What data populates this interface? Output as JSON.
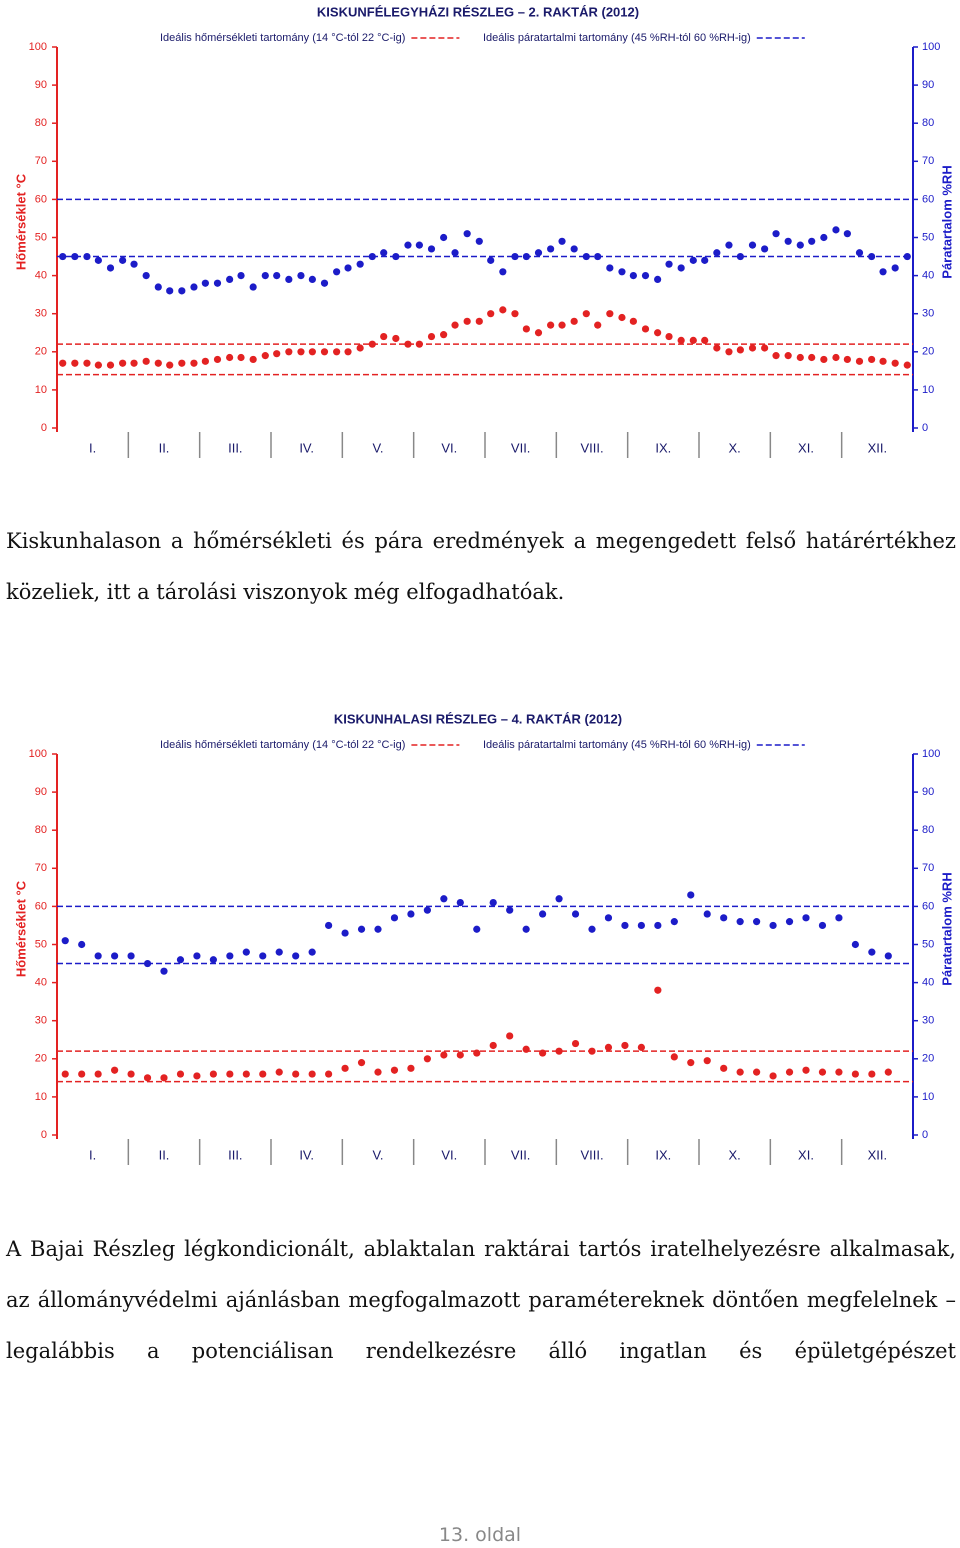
{
  "chart_data": [
    {
      "type": "scatter",
      "title": "KISKUNFÉLEGYHÁZI RÉSZLEG – 2. RAKTÁR (2012)",
      "y_label": "Hőmérséklet °C",
      "y2_label": "Páratartalom %RH",
      "categories": [
        "I.",
        "II.",
        "III.",
        "IV.",
        "V.",
        "VI.",
        "VII.",
        "VIII.",
        "IX.",
        "X.",
        "XI.",
        "XII."
      ],
      "xlim": [
        0,
        12
      ],
      "x": [
        0.08,
        0.25,
        0.42,
        0.58,
        0.75,
        0.92,
        1.08,
        1.25,
        1.42,
        1.58,
        1.75,
        1.92,
        2.08,
        2.25,
        2.42,
        2.58,
        2.75,
        2.92,
        3.08,
        3.25,
        3.42,
        3.58,
        3.75,
        3.92,
        4.08,
        4.25,
        4.42,
        4.58,
        4.75,
        4.92,
        5.08,
        5.25,
        5.42,
        5.58,
        5.75,
        5.92,
        6.08,
        6.25,
        6.42,
        6.58,
        6.75,
        6.92,
        7.08,
        7.25,
        7.42,
        7.58,
        7.75,
        7.92,
        8.08,
        8.25,
        8.42,
        8.58,
        8.75,
        8.92,
        9.08,
        9.25,
        9.42,
        9.58,
        9.75,
        9.92,
        10.08,
        10.25,
        10.42,
        10.58,
        10.75,
        10.92,
        11.08,
        11.25,
        11.42,
        11.58,
        11.75,
        11.92
      ],
      "series": [
        {
          "color": "#e32222",
          "axis": "y",
          "values": [
            17,
            17,
            17,
            16.5,
            16.5,
            17,
            17,
            17.5,
            17,
            16.5,
            17,
            17,
            17.5,
            18,
            18.5,
            18.5,
            18,
            19,
            19.5,
            20,
            20,
            20,
            20,
            20,
            20,
            21,
            22,
            24,
            23.5,
            22,
            22,
            24,
            24.5,
            27,
            28,
            28,
            30,
            31,
            30,
            26,
            25,
            27,
            27,
            28,
            30,
            27,
            30,
            29,
            28,
            26,
            25,
            24,
            23,
            23,
            23,
            21,
            20,
            20.5,
            21,
            21,
            19,
            19,
            18.5,
            18.5,
            18,
            18.5,
            18,
            17.5,
            18,
            17.5,
            17,
            16.5
          ]
        },
        {
          "color": "#1c1cc8",
          "axis": "y2",
          "values": [
            45,
            45,
            45,
            44,
            42,
            44,
            43,
            40,
            37,
            36,
            36,
            37,
            38,
            38,
            39,
            40,
            37,
            40,
            40,
            39,
            40,
            39,
            38,
            41,
            42,
            43,
            45,
            46,
            45,
            48,
            48,
            47,
            50,
            46,
            51,
            49,
            44,
            41,
            45,
            45,
            46,
            47,
            49,
            47,
            45,
            45,
            42,
            41,
            40,
            40,
            39,
            43,
            42,
            44,
            44,
            46,
            48,
            45,
            48,
            47,
            51,
            49,
            48,
            49,
            50,
            52,
            51,
            46,
            45,
            41,
            42,
            45
          ]
        }
      ],
      "ranges": [
        {
          "name": "Ideális hőmérsékleti tartomány (14 °C-tól 22 °C-ig)",
          "color": "#e32222",
          "axis": "y",
          "values": [
            14,
            22
          ]
        },
        {
          "name": "Ideális páratartalmi tartomány (45 %RH-tól 60 %RH-ig)",
          "color": "#1c1cc8",
          "axis": "y2",
          "values": [
            45,
            60
          ]
        }
      ],
      "ylim": [
        0,
        100
      ],
      "yticks": [
        0,
        10,
        20,
        30,
        40,
        50,
        60,
        70,
        80,
        90,
        100
      ],
      "y2lim": [
        0,
        100
      ],
      "y2ticks": [
        0,
        10,
        20,
        30,
        40,
        50,
        60,
        70,
        80,
        90,
        100
      ]
    },
    {
      "type": "scatter",
      "title": "KISKUNHALASI RÉSZLEG – 4. RAKTÁR (2012)",
      "y_label": "Hőmérséklet °C",
      "y2_label": "Páratartalom %RH",
      "categories": [
        "I.",
        "II.",
        "III.",
        "IV.",
        "V.",
        "VI.",
        "VII.",
        "VIII.",
        "IX.",
        "X.",
        "XI.",
        "XII."
      ],
      "xlim": [
        0,
        52
      ],
      "x": [
        0.5,
        1.5,
        2.5,
        3.5,
        4.5,
        5.5,
        6.5,
        7.5,
        8.5,
        9.5,
        10.5,
        11.5,
        12.5,
        13.5,
        14.5,
        15.5,
        16.5,
        17.5,
        18.5,
        19.5,
        20.5,
        21.5,
        22.5,
        23.5,
        24.5,
        25.5,
        26.5,
        27.5,
        28.5,
        29.5,
        30.5,
        31.5,
        32.5,
        33.5,
        34.5,
        35.5,
        36.5,
        37.5,
        38.5,
        39.5,
        40.5,
        41.5,
        42.5,
        43.5,
        44.5,
        45.5,
        46.5,
        47.5,
        48.5,
        49.5,
        50.5
      ],
      "series": [
        {
          "color": "#e32222",
          "axis": "y",
          "values": [
            16,
            16,
            16,
            17,
            16,
            15,
            15,
            16,
            15.5,
            16,
            16,
            16,
            16,
            16.5,
            16,
            16,
            16,
            17.5,
            19,
            16.5,
            17,
            17.5,
            20,
            21,
            21,
            21.5,
            23.5,
            26,
            22.5,
            21.5,
            22,
            24,
            22,
            23,
            23.5,
            23,
            38,
            20.5,
            19,
            19.5,
            17.5,
            16.5,
            16.5,
            15.5,
            16.5,
            17,
            16.5,
            16.5,
            16,
            16,
            16.5
          ]
        },
        {
          "color": "#1c1cc8",
          "axis": "y2",
          "values": [
            51,
            50,
            47,
            47,
            47,
            45,
            43,
            46,
            47,
            46,
            47,
            48,
            47,
            48,
            47,
            48,
            55,
            53,
            54,
            54,
            57,
            58,
            59,
            62,
            61,
            54,
            61,
            59,
            54,
            58,
            62,
            58,
            54,
            57,
            55,
            55,
            55,
            56,
            63,
            58,
            57,
            56,
            56,
            55,
            56,
            57,
            55,
            57,
            50,
            48,
            47
          ]
        }
      ],
      "ranges": [
        {
          "name": "Ideális hőmérsékleti tartomány (14 °C-tól 22 °C-ig)",
          "color": "#e32222",
          "axis": "y",
          "values": [
            14,
            22
          ]
        },
        {
          "name": "Ideális páratartalmi tartomány (45 %RH-tól 60 %RH-ig)",
          "color": "#1c1cc8",
          "axis": "y2",
          "values": [
            45,
            60
          ]
        }
      ],
      "ylim": [
        0,
        100
      ],
      "yticks": [
        0,
        10,
        20,
        30,
        40,
        50,
        60,
        70,
        80,
        90,
        100
      ],
      "y2lim": [
        0,
        100
      ],
      "y2ticks": [
        0,
        10,
        20,
        30,
        40,
        50,
        60,
        70,
        80,
        90,
        100
      ]
    }
  ],
  "paragraphs": [
    "Kiskunhalason a hőmérsékleti és pára eredmények a megengedett felső határértékhez közeliek, itt a tárolási viszonyok még elfogadhatóak.",
    "A Bajai Részleg légkondicionált, ablaktalan raktárai tartós iratelhelyezésre alkalmasak, az állományvédelmi ajánlásban megfogalmazott paramétereknek döntően megfelelnek – legalábbis a potenciálisan rendelkezésre álló ingatlan és épületgépészet"
  ],
  "footer": "13. oldal"
}
